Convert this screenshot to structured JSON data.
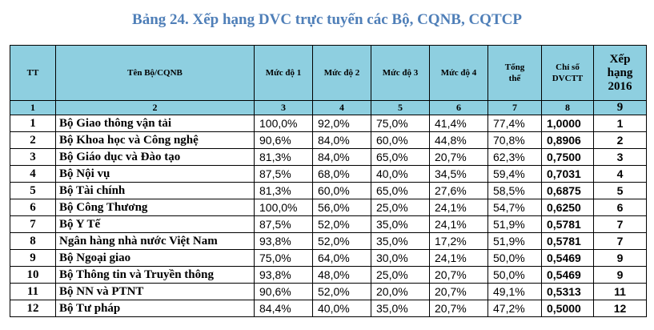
{
  "title": "Bảng 24. Xếp hạng DVC trực tuyến các Bộ, CQNB, CQTCP",
  "headers": {
    "tt": "TT",
    "name": "Tên Bộ/CQNB",
    "m1": "Mức độ 1",
    "m2": "Mức độ 2",
    "m3": "Mức độ 3",
    "m4": "Mức độ 4",
    "total_line1": "Tổng",
    "total_line2": "thể",
    "index_line1": "Chỉ số",
    "index_line2": "DVCTT",
    "rank_line1": "Xếp",
    "rank_line2": "hạng",
    "rank_line3": "2016"
  },
  "col_numbers": [
    "1",
    "2",
    "3",
    "4",
    "5",
    "6",
    "7",
    "8",
    "9"
  ],
  "rows": [
    {
      "tt": "1",
      "name": "Bộ Giao thông vận tải",
      "m1": "100,0%",
      "m2": "92,0%",
      "m3": "75,0%",
      "m4": "41,4%",
      "total": "77,4%",
      "index": "1,0000",
      "rank": "1"
    },
    {
      "tt": "2",
      "name": "Bộ Khoa học và Công nghệ",
      "m1": "90,6%",
      "m2": "84,0%",
      "m3": "60,0%",
      "m4": "44,8%",
      "total": "70,8%",
      "index": "0,8906",
      "rank": "2"
    },
    {
      "tt": "3",
      "name": "Bộ Giáo dục và Đào tạo",
      "m1": "81,3%",
      "m2": "84,0%",
      "m3": "65,0%",
      "m4": "20,7%",
      "total": "62,3%",
      "index": "0,7500",
      "rank": "3"
    },
    {
      "tt": "4",
      "name": "Bộ Nội vụ",
      "m1": "87,5%",
      "m2": "68,0%",
      "m3": "40,0%",
      "m4": "34,5%",
      "total": "59,4%",
      "index": "0,7031",
      "rank": "4"
    },
    {
      "tt": "5",
      "name": "Bộ Tài chính",
      "m1": "81,3%",
      "m2": "60,0%",
      "m3": "65,0%",
      "m4": "27,6%",
      "total": "58,5%",
      "index": "0,6875",
      "rank": "5"
    },
    {
      "tt": "6",
      "name": "Bộ Công Thương",
      "m1": "100,0%",
      "m2": "56,0%",
      "m3": "25,0%",
      "m4": "24,1%",
      "total": "54,7%",
      "index": "0,6250",
      "rank": "6"
    },
    {
      "tt": "7",
      "name": "Bộ Y Tế",
      "m1": "87,5%",
      "m2": "52,0%",
      "m3": "35,0%",
      "m4": "24,1%",
      "total": "51,9%",
      "index": "0,5781",
      "rank": "7"
    },
    {
      "tt": "8",
      "name": "Ngân hàng nhà nước Việt Nam",
      "m1": "93,8%",
      "m2": "52,0%",
      "m3": "35,0%",
      "m4": "17,2%",
      "total": "51,9%",
      "index": "0,5781",
      "rank": "7"
    },
    {
      "tt": "9",
      "name": "Bộ Ngoại giao",
      "m1": "75,0%",
      "m2": "64,0%",
      "m3": "30,0%",
      "m4": "24,1%",
      "total": "50,0%",
      "index": "0,5469",
      "rank": "9"
    },
    {
      "tt": "10",
      "name": "Bộ Thông tin và Truyền thông",
      "m1": "93,8%",
      "m2": "48,0%",
      "m3": "25,0%",
      "m4": "20,7%",
      "total": "50,0%",
      "index": "0,5469",
      "rank": "9"
    },
    {
      "tt": "11",
      "name": "Bộ NN và PTNT",
      "m1": "90,6%",
      "m2": "52,0%",
      "m3": "20,0%",
      "m4": "20,7%",
      "total": "49,1%",
      "index": "0,5313",
      "rank": "11"
    },
    {
      "tt": "12",
      "name": "Bộ Tư pháp",
      "m1": "84,4%",
      "m2": "40,0%",
      "m3": "35,0%",
      "m4": "20,7%",
      "total": "47,2%",
      "index": "0,5000",
      "rank": "12"
    }
  ],
  "colors": {
    "title": "#4f7fb8",
    "header_bg": "#8ecfe0"
  }
}
